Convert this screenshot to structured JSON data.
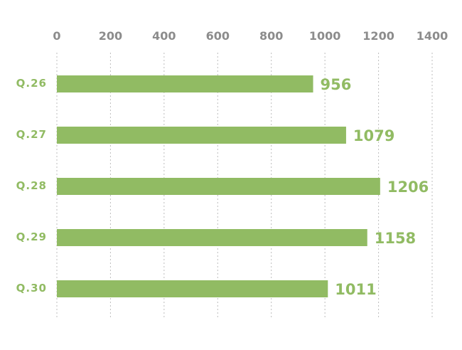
{
  "chart_data": {
    "type": "bar",
    "orientation": "horizontal",
    "categories": [
      "Q.26",
      "Q.27",
      "Q.28",
      "Q.29",
      "Q.30"
    ],
    "values": [
      956,
      1079,
      1206,
      1158,
      1011
    ],
    "xticks": [
      "0",
      "200",
      "400",
      "600",
      "800",
      "1000",
      "1200",
      "1400"
    ],
    "xlim": [
      0,
      1400
    ],
    "grid": true,
    "axis_position": "top",
    "bar_color": "#91bb63",
    "label_color": "#91bb63",
    "tick_color": "#8c8c8c"
  }
}
